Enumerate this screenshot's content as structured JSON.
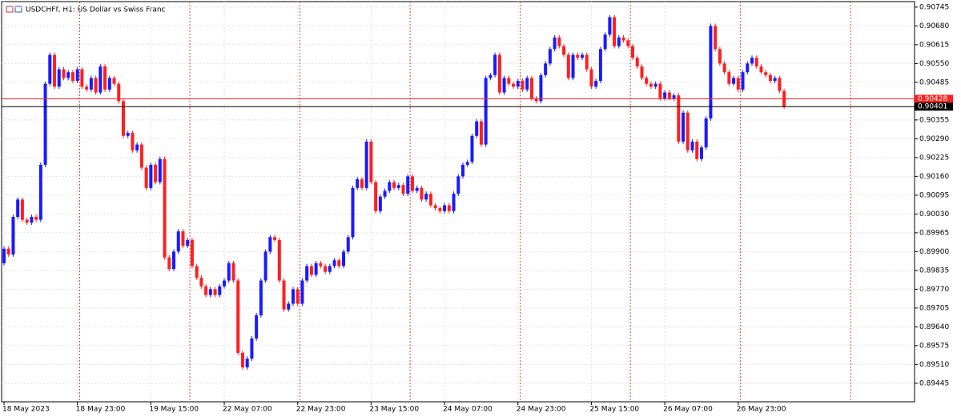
{
  "chart_data": {
    "type": "candlestick",
    "title": "USDCHFf, H1:  US Dollar vs Swiss Franc",
    "up_color": "#1a1aff",
    "down_color": "#ff1f1f",
    "grid": true,
    "categories": [
      "18 May 2023",
      null,
      null,
      null,
      null,
      null,
      null,
      null,
      null,
      null,
      null,
      null,
      null,
      null,
      null,
      null,
      "18 May 23:00",
      null,
      null,
      null,
      null,
      null,
      null,
      null,
      null,
      null,
      null,
      null,
      null,
      null,
      null,
      null,
      "19 May 15:00",
      null,
      null,
      null,
      null,
      null,
      null,
      null,
      null,
      null,
      null,
      null,
      null,
      null,
      null,
      null,
      "22 May 07:00",
      null,
      null,
      null,
      null,
      null,
      null,
      null,
      null,
      null,
      null,
      null,
      null,
      null,
      null,
      null,
      "22 May 23:00",
      null,
      null,
      null,
      null,
      null,
      null,
      null,
      null,
      null,
      null,
      null,
      null,
      null,
      null,
      null,
      "23 May 15:00",
      null,
      null,
      null,
      null,
      null,
      null,
      null,
      null,
      null,
      null,
      null,
      null,
      null,
      null,
      null,
      "24 May 07:00",
      null,
      null,
      null,
      null,
      null,
      null,
      null,
      null,
      null,
      null,
      null,
      null,
      null,
      null,
      null,
      "24 May 23:00",
      null,
      null,
      null,
      null,
      null,
      null,
      null,
      null,
      null,
      null,
      null,
      null,
      null,
      null,
      null,
      "25 May 15:00",
      null,
      null,
      null,
      null,
      null,
      null,
      null,
      null,
      null,
      null,
      null,
      null,
      null,
      null,
      null,
      "26 May 07:00",
      null,
      null,
      null,
      null,
      null,
      null,
      null,
      null,
      null,
      null,
      null,
      null,
      null,
      null,
      null,
      "26 May 23:00",
      null,
      null,
      null,
      null,
      null,
      null,
      null,
      null,
      null,
      null
    ],
    "open": [
      0.8986,
      0.8991,
      0.8989,
      0.9002,
      0.9008,
      0.9001,
      0.9,
      0.9002,
      0.9001,
      0.902,
      0.9048,
      0.9058,
      0.9047,
      0.9053,
      0.905,
      0.9052,
      0.9049,
      0.9053,
      0.9047,
      0.9046,
      0.905,
      0.9045,
      0.9054,
      0.9046,
      0.905,
      0.9048,
      0.9042,
      0.903,
      0.9031,
      0.9025,
      0.9027,
      0.9019,
      0.9012,
      0.902,
      0.9014,
      0.9022,
      0.8988,
      0.8984,
      0.899,
      0.8997,
      0.8992,
      0.8994,
      0.8985,
      0.8981,
      0.8978,
      0.8975,
      0.8977,
      0.8975,
      0.8978,
      0.898,
      0.8986,
      0.898,
      0.8955,
      0.895,
      0.8953,
      0.896,
      0.8968,
      0.898,
      0.899,
      0.8995,
      0.8994,
      0.898,
      0.897,
      0.8972,
      0.8977,
      0.8972,
      0.898,
      0.8985,
      0.8982,
      0.8986,
      0.8985,
      0.8983,
      0.8985,
      0.8987,
      0.8985,
      0.899,
      0.8995,
      0.9012,
      0.9015,
      0.9012,
      0.9028,
      0.9014,
      0.9004,
      0.9009,
      0.9011,
      0.9014,
      0.9012,
      0.9013,
      0.901,
      0.9016,
      0.9011,
      0.9012,
      0.9008,
      0.901,
      0.9006,
      0.9005,
      0.9004,
      0.9006,
      0.9004,
      0.901,
      0.9016,
      0.902,
      0.9021,
      0.903,
      0.9035,
      0.9027,
      0.905,
      0.9051,
      0.9058,
      0.9045,
      0.905,
      0.9048,
      0.9047,
      0.9049,
      0.9046,
      0.905,
      0.9043,
      0.9042,
      0.9051,
      0.9055,
      0.906,
      0.9064,
      0.9061,
      0.9058,
      0.905,
      0.9058,
      0.9057,
      0.9058,
      0.9053,
      0.9047,
      0.9049,
      0.906,
      0.9065,
      0.9071,
      0.9061,
      0.9064,
      0.9063,
      0.9061,
      0.9057,
      0.9054,
      0.905,
      0.9048,
      0.9047,
      0.9048,
      0.9043,
      0.9045,
      0.9043,
      0.9044,
      0.9028,
      0.9038,
      0.9025,
      0.9028,
      0.9022,
      0.9026,
      0.9036,
      0.9068,
      0.906,
      0.9055,
      0.9052,
      0.9048,
      0.905,
      0.9046,
      0.9052,
      0.9055,
      0.9057,
      0.9054,
      0.9052,
      0.9051,
      0.9049,
      0.905,
      0.90455
    ],
    "high": [
      0.89918,
      0.89918,
      0.90028,
      0.90088,
      0.90088,
      0.90018,
      0.90028,
      0.90028,
      0.90208,
      0.90488,
      0.90588,
      0.90588,
      0.90538,
      0.90538,
      0.90528,
      0.90528,
      0.90538,
      0.90538,
      0.90478,
      0.90508,
      0.90508,
      0.90548,
      0.90548,
      0.90508,
      0.90508,
      0.90488,
      0.90428,
      0.90318,
      0.90318,
      0.90278,
      0.90278,
      0.90198,
      0.90208,
      0.90208,
      0.90228,
      0.90228,
      0.89888,
      0.89908,
      0.89978,
      0.89978,
      0.89948,
      0.89948,
      0.89858,
      0.89818,
      0.89788,
      0.89778,
      0.89778,
      0.89788,
      0.89808,
      0.89868,
      0.89868,
      0.89808,
      0.89558,
      0.89538,
      0.89608,
      0.89688,
      0.89808,
      0.89908,
      0.89958,
      0.89958,
      0.89948,
      0.89808,
      0.89728,
      0.89778,
      0.89778,
      0.89808,
      0.89858,
      0.89858,
      0.89868,
      0.89868,
      0.89858,
      0.89858,
      0.89878,
      0.89878,
      0.89908,
      0.89958,
      0.90128,
      0.90158,
      0.90158,
      0.90288,
      0.90288,
      0.90148,
      0.90098,
      0.90118,
      0.90148,
      0.90148,
      0.90138,
      0.90138,
      0.90168,
      0.90168,
      0.90128,
      0.90128,
      0.90108,
      0.90108,
      0.90068,
      0.90058,
      0.90068,
      0.90068,
      0.90108,
      0.90168,
      0.90208,
      0.90218,
      0.90308,
      0.90358,
      0.90358,
      0.90508,
      0.90518,
      0.90588,
      0.90588,
      0.90508,
      0.90508,
      0.90488,
      0.90498,
      0.90498,
      0.90508,
      0.90508,
      0.90438,
      0.90518,
      0.90558,
      0.90608,
      0.90648,
      0.90648,
      0.90618,
      0.90588,
      0.90588,
      0.90588,
      0.90588,
      0.90588,
      0.90538,
      0.90498,
      0.90608,
      0.90658,
      0.90718,
      0.90718,
      0.90648,
      0.90648,
      0.90638,
      0.90618,
      0.90578,
      0.90548,
      0.90508,
      0.90488,
      0.90488,
      0.90488,
      0.90458,
      0.90458,
      0.90448,
      0.90448,
      0.90388,
      0.90388,
      0.90288,
      0.90288,
      0.90268,
      0.90368,
      0.90688,
      0.90688,
      0.90608,
      0.90558,
      0.90528,
      0.90508,
      0.90508,
      0.90528,
      0.90558,
      0.90578,
      0.90578,
      0.90548,
      0.90528,
      0.90518,
      0.90508,
      0.90508,
      0.90463
    ],
    "low": [
      0.89852,
      0.89882,
      0.89882,
      0.90012,
      0.90002,
      0.89992,
      0.89992,
      0.90002,
      0.90002,
      0.90192,
      0.90472,
      0.90462,
      0.90462,
      0.90492,
      0.90492,
      0.90482,
      0.90482,
      0.90462,
      0.90452,
      0.90452,
      0.90442,
      0.90442,
      0.90452,
      0.90452,
      0.90472,
      0.90412,
      0.90292,
      0.90292,
      0.90242,
      0.90242,
      0.90182,
      0.90112,
      0.90112,
      0.90132,
      0.90132,
      0.89872,
      0.89832,
      0.89832,
      0.89892,
      0.89912,
      0.89912,
      0.89842,
      0.89802,
      0.89772,
      0.89742,
      0.89742,
      0.89742,
      0.89742,
      0.89772,
      0.89792,
      0.89792,
      0.89542,
      0.89492,
      0.89492,
      0.89522,
      0.89592,
      0.89672,
      0.89792,
      0.89892,
      0.89932,
      0.89792,
      0.89692,
      0.89692,
      0.89712,
      0.89712,
      0.89712,
      0.89792,
      0.89812,
      0.89812,
      0.89842,
      0.89822,
      0.89822,
      0.89842,
      0.89842,
      0.89842,
      0.89892,
      0.89942,
      0.90112,
      0.90112,
      0.90112,
      0.90132,
      0.90032,
      0.90032,
      0.90082,
      0.90102,
      0.90112,
      0.90112,
      0.90092,
      0.90092,
      0.90102,
      0.90102,
      0.90072,
      0.90072,
      0.90052,
      0.90042,
      0.90032,
      0.90032,
      0.90032,
      0.90032,
      0.90092,
      0.90152,
      0.90192,
      0.90202,
      0.90292,
      0.90262,
      0.90262,
      0.90492,
      0.90502,
      0.90442,
      0.90442,
      0.90472,
      0.90462,
      0.90462,
      0.90452,
      0.90452,
      0.90422,
      0.90412,
      0.90412,
      0.90502,
      0.90542,
      0.90592,
      0.90602,
      0.90572,
      0.90492,
      0.90492,
      0.90562,
      0.90562,
      0.90522,
      0.90462,
      0.90462,
      0.90482,
      0.90592,
      0.90642,
      0.90602,
      0.90602,
      0.90622,
      0.90602,
      0.90562,
      0.90532,
      0.90492,
      0.90472,
      0.90462,
      0.90462,
      0.90422,
      0.90422,
      0.90422,
      0.90422,
      0.90272,
      0.90272,
      0.90242,
      0.90242,
      0.90212,
      0.90212,
      0.90252,
      0.90352,
      0.90592,
      0.90542,
      0.90512,
      0.90472,
      0.90472,
      0.90452,
      0.90452,
      0.90512,
      0.90542,
      0.90532,
      0.90512,
      0.90502,
      0.90482,
      0.90482,
      0.90447,
      0.90393
    ],
    "close": [
      0.8991,
      0.8989,
      0.9002,
      0.9008,
      0.9001,
      0.9,
      0.9002,
      0.9001,
      0.902,
      0.9048,
      0.9058,
      0.9047,
      0.9053,
      0.905,
      0.9052,
      0.9049,
      0.9053,
      0.9047,
      0.9046,
      0.905,
      0.9045,
      0.9054,
      0.9046,
      0.905,
      0.9048,
      0.9042,
      0.903,
      0.9031,
      0.9025,
      0.9027,
      0.9019,
      0.9012,
      0.902,
      0.9014,
      0.9022,
      0.8988,
      0.8984,
      0.899,
      0.8997,
      0.8992,
      0.8994,
      0.8985,
      0.8981,
      0.8978,
      0.8975,
      0.8977,
      0.8975,
      0.8978,
      0.898,
      0.8986,
      0.898,
      0.8955,
      0.895,
      0.8953,
      0.896,
      0.8968,
      0.898,
      0.899,
      0.8995,
      0.8994,
      0.898,
      0.897,
      0.8972,
      0.8977,
      0.8972,
      0.898,
      0.8985,
      0.8982,
      0.8986,
      0.8985,
      0.8983,
      0.8985,
      0.8987,
      0.8985,
      0.899,
      0.8995,
      0.9012,
      0.9015,
      0.9012,
      0.9028,
      0.9014,
      0.9004,
      0.9009,
      0.9011,
      0.9014,
      0.9012,
      0.9013,
      0.901,
      0.9016,
      0.9011,
      0.9012,
      0.9008,
      0.901,
      0.9006,
      0.9005,
      0.9004,
      0.9006,
      0.9004,
      0.901,
      0.9016,
      0.902,
      0.9021,
      0.903,
      0.9035,
      0.9027,
      0.905,
      0.9051,
      0.9058,
      0.9045,
      0.905,
      0.9048,
      0.9047,
      0.9049,
      0.9046,
      0.905,
      0.9043,
      0.9042,
      0.9051,
      0.9055,
      0.906,
      0.9064,
      0.9061,
      0.9058,
      0.905,
      0.9058,
      0.9057,
      0.9058,
      0.9053,
      0.9047,
      0.9049,
      0.906,
      0.9065,
      0.9071,
      0.9061,
      0.9064,
      0.9063,
      0.9061,
      0.9057,
      0.9054,
      0.905,
      0.9048,
      0.9047,
      0.9048,
      0.9043,
      0.9045,
      0.9043,
      0.9044,
      0.9028,
      0.9038,
      0.9025,
      0.9028,
      0.9022,
      0.9026,
      0.9036,
      0.9068,
      0.906,
      0.9055,
      0.9052,
      0.9048,
      0.905,
      0.9046,
      0.9052,
      0.9055,
      0.9057,
      0.9054,
      0.9052,
      0.9051,
      0.9049,
      0.905,
      0.90455,
      0.90401
    ],
    "ylim": [
      0.89381,
      0.90764
    ],
    "yticks": [
      0.90745,
      {
        "value": 0.9068,
        "label": "0.90680"
      },
      0.90615,
      {
        "value": 0.9055,
        "label": "0.90550"
      },
      0.90485,
      0.90355,
      {
        "value": 0.9029,
        "label": "0.90290"
      },
      0.90225,
      {
        "value": 0.9016,
        "label": "0.90160"
      },
      0.90095,
      {
        "value": 0.9003,
        "label": "0.90030"
      },
      0.89965,
      {
        "value": 0.899,
        "label": "0.89900"
      },
      0.89835,
      {
        "value": 0.8977,
        "label": "0.89770"
      },
      0.89705,
      {
        "value": 0.8964,
        "label": "0.89640"
      },
      0.89575,
      {
        "value": 0.8951,
        "label": "0.89510"
      },
      0.89445
    ],
    "price_lines": [
      {
        "value": 0.90428,
        "color": "#ff1f1f"
      },
      {
        "value": 0.90401,
        "color": "#000000"
      }
    ]
  }
}
